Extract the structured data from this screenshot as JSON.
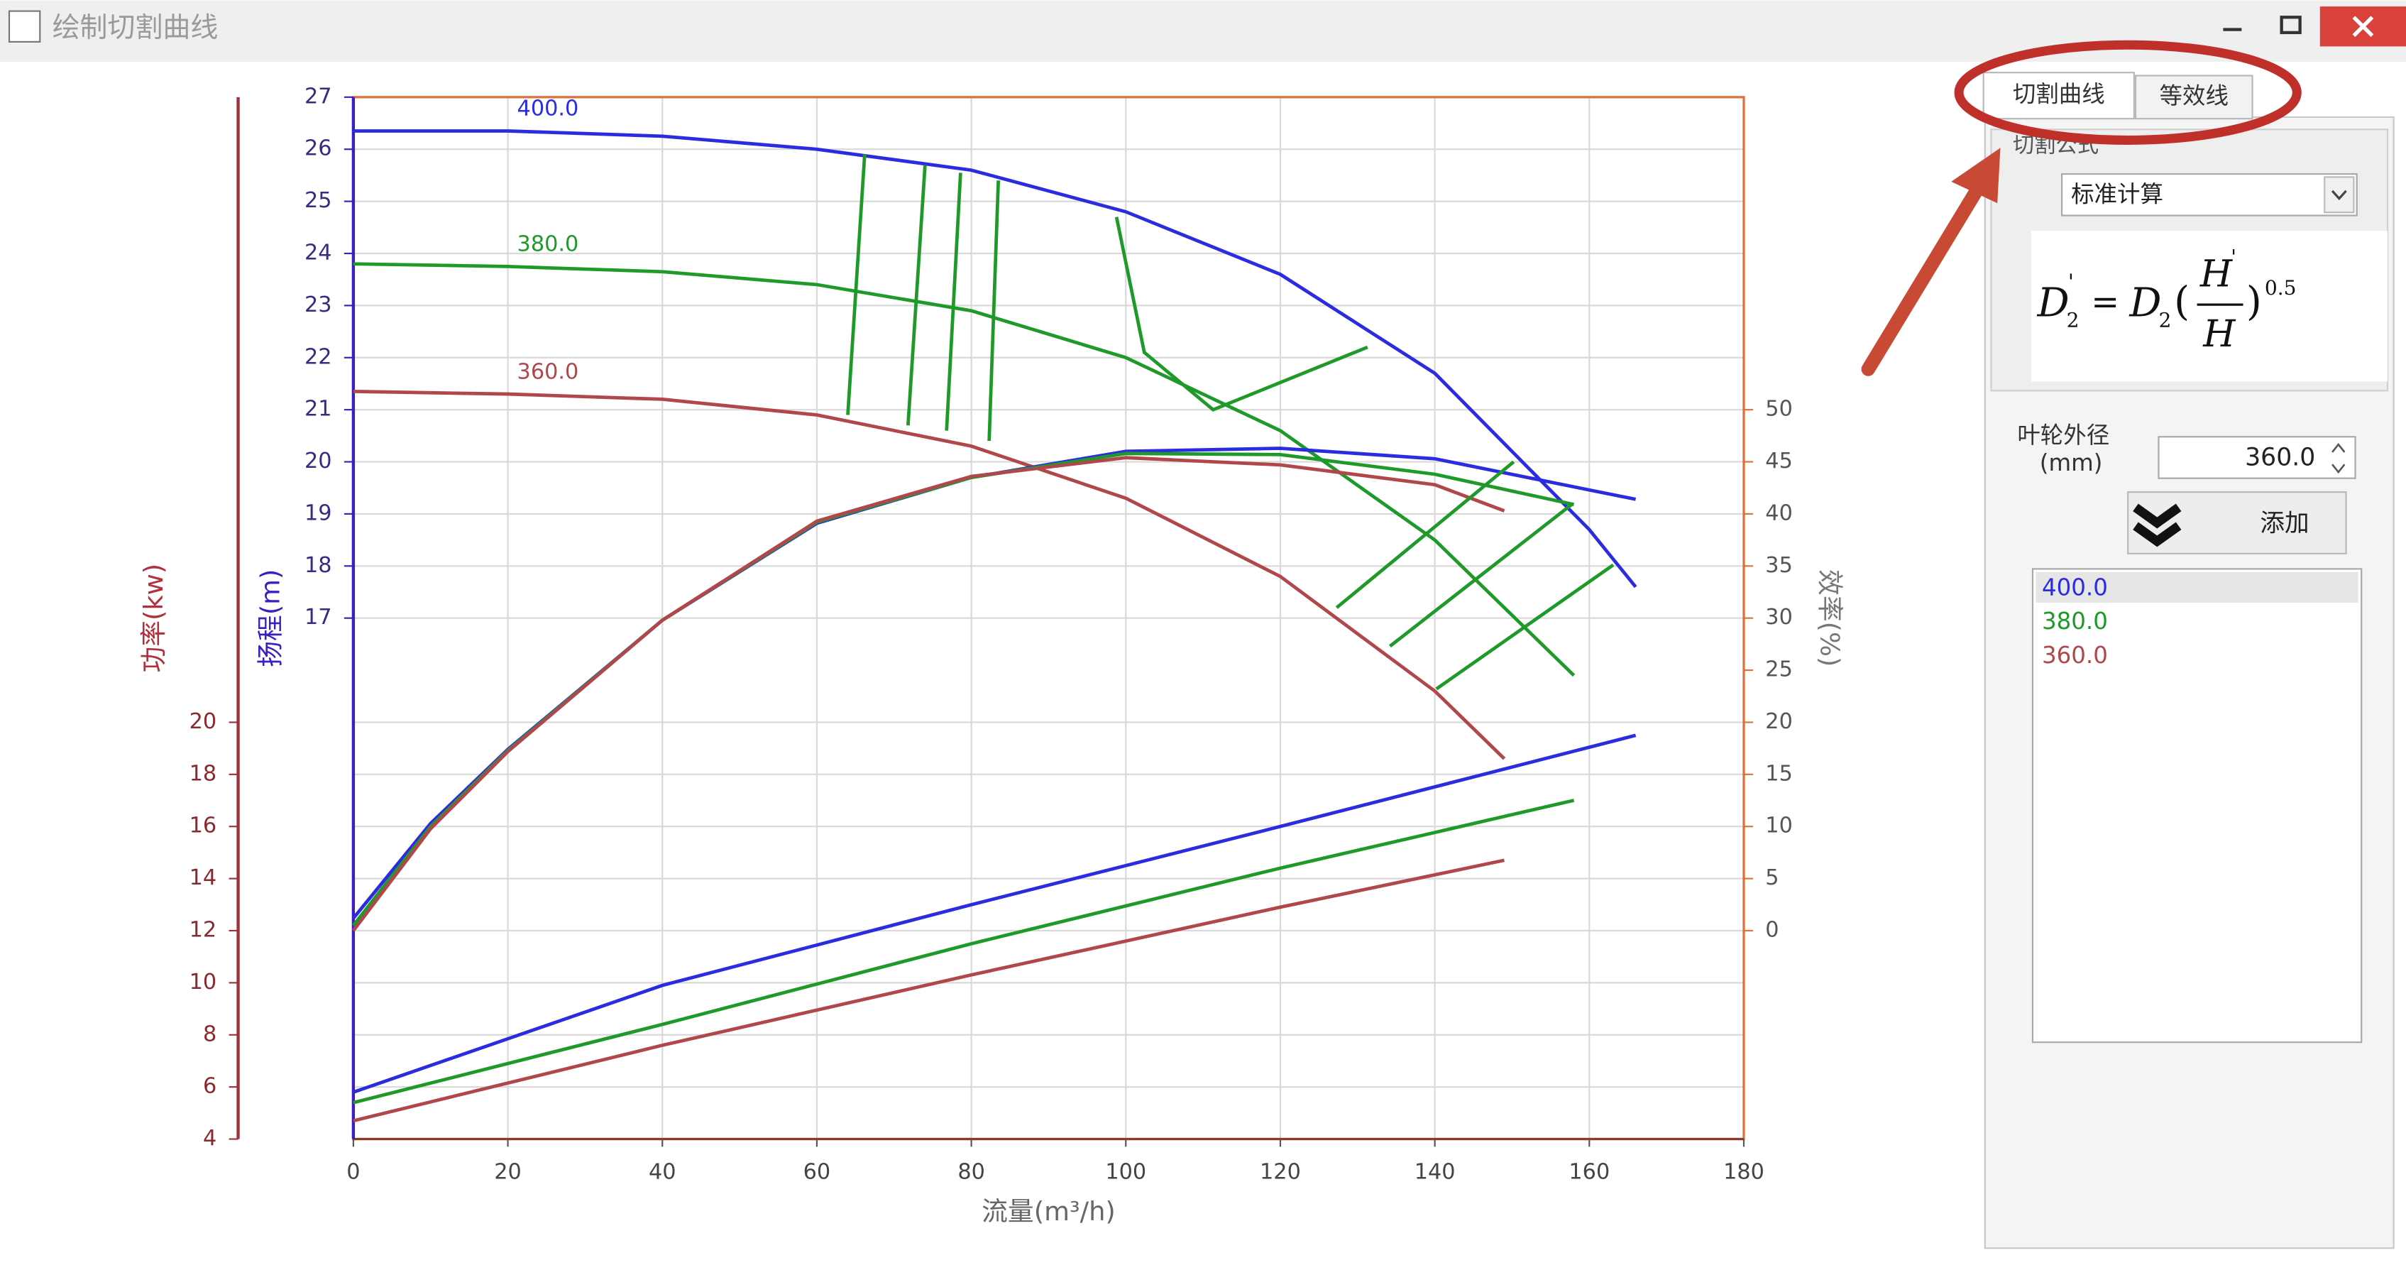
{
  "window": {
    "title": "绘制切割曲线"
  },
  "panel": {
    "tabs": [
      "切割曲线",
      "等效线"
    ],
    "group_title": "切割公式",
    "method": "标准计算",
    "formula": {
      "D": "D",
      "sub": "2",
      "prime": "'",
      "equals": "=",
      "open": "(",
      "H": "H",
      "close": ")",
      "exponent": "0.5"
    },
    "diameter_label": "叶轮外径",
    "diameter_unit": "(mm)",
    "diameter_value": "360.0",
    "add_button": "添加"
  },
  "chart_data": {
    "type": "line",
    "xlabel": "流量(m³/h)",
    "ylabel": "扬程(m)",
    "y2label": "效率(%)",
    "y3label": "功率(kw)",
    "xlim": [
      0,
      180
    ],
    "xticks": [
      0,
      20,
      40,
      60,
      80,
      100,
      120,
      140,
      160,
      180
    ],
    "ylim": [
      7,
      27
    ],
    "yticks": [
      17,
      18,
      19,
      20,
      21,
      22,
      23,
      24,
      25,
      26,
      27
    ],
    "y2lim": [
      -20,
      80
    ],
    "y2ticks": [
      0,
      5,
      10,
      15,
      20,
      25,
      30,
      35,
      40,
      45,
      50
    ],
    "y3lim": [
      4,
      44
    ],
    "y3ticks": [
      4,
      6,
      8,
      10,
      12,
      14,
      16,
      18,
      20
    ],
    "grid": true,
    "series": [
      {
        "name": "400.0",
        "color": "#2b2be0",
        "axis": "y",
        "x": [
          0,
          20,
          40,
          60,
          80,
          100,
          120,
          140,
          160,
          166
        ],
        "values": [
          26.35,
          26.35,
          26.25,
          26.0,
          25.6,
          24.8,
          23.6,
          21.7,
          18.7,
          17.6
        ]
      },
      {
        "name": "380.0",
        "color": "#1f9a2a",
        "axis": "y",
        "x": [
          0,
          20,
          40,
          60,
          80,
          100,
          120,
          140,
          158
        ],
        "values": [
          23.8,
          23.75,
          23.65,
          23.4,
          22.9,
          22.0,
          20.6,
          18.5,
          15.9
        ]
      },
      {
        "name": "360.0",
        "color": "#b0474a",
        "axis": "y",
        "x": [
          0,
          20,
          40,
          60,
          80,
          100,
          120,
          140,
          149
        ],
        "values": [
          21.35,
          21.3,
          21.2,
          20.9,
          20.3,
          19.3,
          17.8,
          15.6,
          14.3
        ]
      },
      {
        "color": "#2b2be0",
        "axis": "y2",
        "x": [
          0,
          10,
          20,
          40,
          60,
          80,
          100,
          120,
          140,
          160,
          166
        ],
        "values": [
          1.2,
          10.3,
          17.4,
          29.8,
          39.1,
          43.5,
          46.0,
          46.3,
          45.3,
          42.3,
          41.4
        ]
      },
      {
        "color": "#1f9a2a",
        "axis": "y2",
        "x": [
          0,
          10,
          20,
          40,
          60,
          80,
          100,
          120,
          140,
          158
        ],
        "values": [
          0.5,
          10.0,
          17.3,
          29.8,
          39.2,
          43.5,
          45.8,
          45.7,
          43.8,
          40.9
        ]
      },
      {
        "color": "#b0474a",
        "axis": "y2",
        "x": [
          0,
          10,
          20,
          40,
          60,
          80,
          100,
          120,
          140,
          149
        ],
        "values": [
          0,
          9.8,
          17.2,
          29.8,
          39.3,
          43.6,
          45.4,
          44.7,
          42.8,
          40.3
        ]
      },
      {
        "color": "#2b2be0",
        "axis": "y3",
        "x": [
          0,
          40,
          80,
          120,
          166
        ],
        "values": [
          5.8,
          9.9,
          13.0,
          16.0,
          19.5
        ]
      },
      {
        "color": "#1f9a2a",
        "axis": "y3",
        "x": [
          0,
          40,
          80,
          120,
          158
        ],
        "values": [
          5.4,
          8.4,
          11.5,
          14.4,
          17.0
        ]
      },
      {
        "color": "#b0474a",
        "axis": "y3",
        "x": [
          0,
          40,
          80,
          120,
          149
        ],
        "values": [
          4.7,
          7.6,
          10.3,
          12.9,
          14.7
        ]
      },
      {
        "color": "#1f9a2a",
        "axis": "y",
        "x": [
          66.2,
          64.0
        ],
        "values": [
          25.9,
          20.9
        ]
      },
      {
        "color": "#1f9a2a",
        "axis": "y",
        "x": [
          74.0,
          71.8
        ],
        "values": [
          25.7,
          20.7
        ]
      },
      {
        "color": "#1f9a2a",
        "axis": "y",
        "x": [
          78.6,
          76.8
        ],
        "values": [
          25.55,
          20.6
        ]
      },
      {
        "color": "#1f9a2a",
        "axis": "y",
        "x": [
          83.5,
          82.3
        ],
        "values": [
          25.4,
          20.4
        ]
      },
      {
        "color": "#1f9a2a",
        "axis": "y",
        "x": [
          98.8,
          102.4,
          111.3,
          131.3
        ],
        "values": [
          24.7,
          22.1,
          21.0,
          22.2
        ]
      },
      {
        "color": "#1f9a2a",
        "axis": "y2",
        "x": [
          127.3,
          150.2
        ],
        "values": [
          31.0,
          45.0
        ]
      },
      {
        "color": "#1f9a2a",
        "axis": "y2",
        "x": [
          134.2,
          157.7
        ],
        "values": [
          27.3,
          40.9
        ]
      },
      {
        "color": "#1f9a2a",
        "axis": "y2",
        "x": [
          140.2,
          163.1
        ],
        "values": [
          23.2,
          35.1
        ]
      }
    ]
  }
}
